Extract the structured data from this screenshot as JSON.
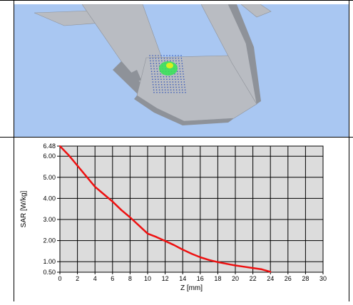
{
  "render": {
    "background_color": "#a9c7f2",
    "surface_color": "#b9bcc2",
    "surface_shadow_color": "#8e9299",
    "grid_color": "#2a4fb8",
    "hotspot_color": "#3ce15b",
    "hotspot_core_color": "#d8f020"
  },
  "chart_data": {
    "type": "line",
    "title": "",
    "xlabel": "Z [mm]",
    "ylabel": "SAR [W/kg]",
    "xlim": [
      0,
      30
    ],
    "ylim": [
      0.5,
      6.48
    ],
    "x_ticks": [
      0,
      2,
      4,
      6,
      8,
      10,
      12,
      14,
      16,
      18,
      20,
      22,
      24,
      26,
      28,
      30
    ],
    "y_ticks": [
      0.5,
      1.0,
      2.0,
      3.0,
      4.0,
      5.0,
      6.0,
      6.48
    ],
    "y_tick_labels": [
      "0.50",
      "1.00",
      "2.00",
      "3.00",
      "4.00",
      "5.00",
      "6.00",
      "6.48"
    ],
    "grid": true,
    "series": [
      {
        "name": "",
        "color": "#ee1111",
        "x": [
          0,
          1,
          2,
          3,
          4,
          5,
          6,
          7,
          8,
          9,
          10,
          11,
          12,
          13,
          14,
          15,
          16,
          17,
          18,
          19,
          20,
          21,
          22,
          23,
          24
        ],
        "y": [
          6.48,
          6.05,
          5.55,
          5.05,
          4.55,
          4.2,
          3.85,
          3.45,
          3.1,
          2.72,
          2.33,
          2.17,
          1.98,
          1.79,
          1.57,
          1.38,
          1.21,
          1.08,
          0.98,
          0.9,
          0.82,
          0.76,
          0.7,
          0.64,
          0.52
        ]
      }
    ]
  }
}
